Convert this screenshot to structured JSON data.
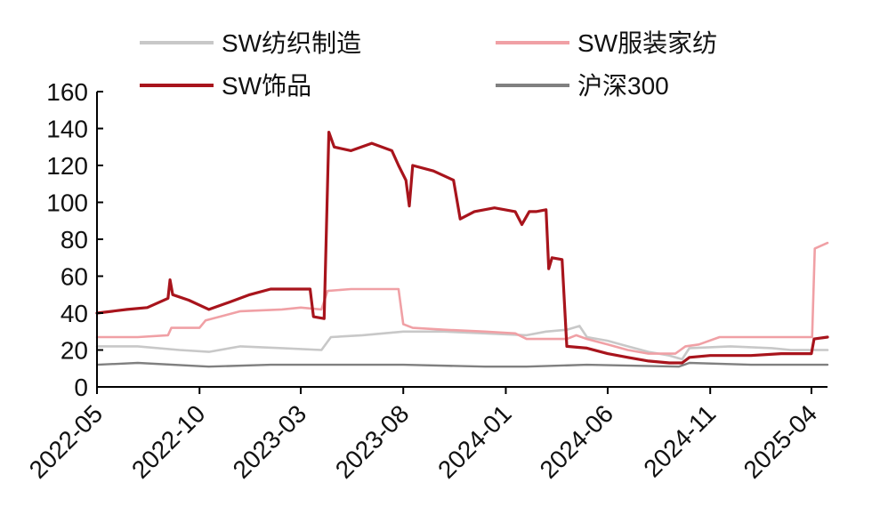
{
  "chart_data": {
    "type": "line",
    "title": "",
    "xlabel": "",
    "ylabel": "",
    "x_ticks": [
      "2022-05",
      "2022-10",
      "2023-03",
      "2023-08",
      "2024-01",
      "2024-06",
      "2024-11",
      "2025-04"
    ],
    "x_range": [
      "2022-05-01",
      "2025-04-25"
    ],
    "y_ticks": [
      0,
      20,
      40,
      60,
      80,
      100,
      120,
      140,
      160
    ],
    "ylim": [
      0,
      160
    ],
    "grid": false,
    "legend_position": "top",
    "series": [
      {
        "name": "SW纺织制造",
        "color": "#c8c8c8",
        "points": [
          [
            "2022-05-01",
            22
          ],
          [
            "2022-07-01",
            22
          ],
          [
            "2022-09-01",
            20
          ],
          [
            "2022-10-15",
            19
          ],
          [
            "2022-12-01",
            22
          ],
          [
            "2023-02-01",
            21
          ],
          [
            "2023-04-01",
            20
          ],
          [
            "2023-04-15",
            27
          ],
          [
            "2023-06-01",
            28
          ],
          [
            "2023-08-01",
            30
          ],
          [
            "2023-10-01",
            30
          ],
          [
            "2023-12-01",
            29
          ],
          [
            "2024-02-01",
            28
          ],
          [
            "2024-03-01",
            30
          ],
          [
            "2024-04-01",
            31
          ],
          [
            "2024-04-20",
            33
          ],
          [
            "2024-05-01",
            27
          ],
          [
            "2024-06-01",
            25
          ],
          [
            "2024-07-01",
            22
          ],
          [
            "2024-08-01",
            19
          ],
          [
            "2024-09-01",
            17
          ],
          [
            "2024-09-20",
            15
          ],
          [
            "2024-10-01",
            21
          ],
          [
            "2024-12-01",
            22
          ],
          [
            "2025-02-01",
            21
          ],
          [
            "2025-03-01",
            20
          ],
          [
            "2025-04-25",
            20
          ]
        ]
      },
      {
        "name": "SW服装家纺",
        "color": "#f0a0a5",
        "points": [
          [
            "2022-05-01",
            27
          ],
          [
            "2022-07-01",
            27
          ],
          [
            "2022-08-15",
            28
          ],
          [
            "2022-08-20",
            32
          ],
          [
            "2022-10-01",
            32
          ],
          [
            "2022-10-10",
            36
          ],
          [
            "2022-12-01",
            41
          ],
          [
            "2023-02-01",
            42
          ],
          [
            "2023-03-01",
            43
          ],
          [
            "2023-04-01",
            42
          ],
          [
            "2023-04-10",
            52
          ],
          [
            "2023-05-15",
            53
          ],
          [
            "2023-06-15",
            53
          ],
          [
            "2023-07-25",
            53
          ],
          [
            "2023-08-01",
            34
          ],
          [
            "2023-08-15",
            32
          ],
          [
            "2023-10-01",
            31
          ],
          [
            "2023-12-01",
            30
          ],
          [
            "2024-01-15",
            29
          ],
          [
            "2024-02-01",
            26
          ],
          [
            "2024-03-15",
            26
          ],
          [
            "2024-04-01",
            26
          ],
          [
            "2024-04-15",
            28
          ],
          [
            "2024-05-01",
            26
          ],
          [
            "2024-06-01",
            23
          ],
          [
            "2024-07-01",
            20
          ],
          [
            "2024-08-01",
            18
          ],
          [
            "2024-09-10",
            18
          ],
          [
            "2024-09-25",
            22
          ],
          [
            "2024-10-15",
            23
          ],
          [
            "2024-11-15",
            27
          ],
          [
            "2025-01-01",
            27
          ],
          [
            "2025-02-15",
            27
          ],
          [
            "2025-03-25",
            27
          ],
          [
            "2025-04-02",
            27
          ],
          [
            "2025-04-06",
            75
          ],
          [
            "2025-04-25",
            78
          ]
        ]
      },
      {
        "name": "SW饰品",
        "color": "#a8141c",
        "points": [
          [
            "2022-05-01",
            40
          ],
          [
            "2022-06-15",
            42
          ],
          [
            "2022-07-15",
            43
          ],
          [
            "2022-08-15",
            48
          ],
          [
            "2022-08-18",
            58
          ],
          [
            "2022-08-22",
            50
          ],
          [
            "2022-09-15",
            47
          ],
          [
            "2022-10-15",
            42
          ],
          [
            "2022-11-15",
            46
          ],
          [
            "2022-12-15",
            50
          ],
          [
            "2023-01-15",
            53
          ],
          [
            "2023-02-15",
            53
          ],
          [
            "2023-03-15",
            53
          ],
          [
            "2023-03-20",
            38
          ],
          [
            "2023-04-05",
            37
          ],
          [
            "2023-04-12",
            138
          ],
          [
            "2023-04-20",
            130
          ],
          [
            "2023-05-15",
            128
          ],
          [
            "2023-06-15",
            132
          ],
          [
            "2023-07-15",
            128
          ],
          [
            "2023-07-25",
            120
          ],
          [
            "2023-08-05",
            112
          ],
          [
            "2023-08-10",
            98
          ],
          [
            "2023-08-15",
            120
          ],
          [
            "2023-09-15",
            117
          ],
          [
            "2023-10-15",
            112
          ],
          [
            "2023-10-25",
            91
          ],
          [
            "2023-11-15",
            95
          ],
          [
            "2023-12-15",
            97
          ],
          [
            "2024-01-15",
            95
          ],
          [
            "2024-01-25",
            88
          ],
          [
            "2024-02-05",
            95
          ],
          [
            "2024-02-15",
            95
          ],
          [
            "2024-03-01",
            96
          ],
          [
            "2024-03-05",
            64
          ],
          [
            "2024-03-10",
            70
          ],
          [
            "2024-03-25",
            69
          ],
          [
            "2024-04-01",
            22
          ],
          [
            "2024-05-01",
            21
          ],
          [
            "2024-06-01",
            18
          ],
          [
            "2024-07-01",
            16
          ],
          [
            "2024-08-01",
            14
          ],
          [
            "2024-09-01",
            13
          ],
          [
            "2024-09-20",
            13
          ],
          [
            "2024-10-01",
            16
          ],
          [
            "2024-11-01",
            17
          ],
          [
            "2025-01-01",
            17
          ],
          [
            "2025-02-15",
            18
          ],
          [
            "2025-04-01",
            18
          ],
          [
            "2025-04-05",
            26
          ],
          [
            "2025-04-25",
            27
          ]
        ]
      },
      {
        "name": "沪深300",
        "color": "#808080",
        "points": [
          [
            "2022-05-01",
            12
          ],
          [
            "2022-07-01",
            13
          ],
          [
            "2022-10-15",
            11
          ],
          [
            "2023-01-15",
            12
          ],
          [
            "2023-05-01",
            12
          ],
          [
            "2023-08-01",
            12
          ],
          [
            "2023-12-01",
            11
          ],
          [
            "2024-02-01",
            11
          ],
          [
            "2024-05-01",
            12
          ],
          [
            "2024-09-15",
            11
          ],
          [
            "2024-10-01",
            13
          ],
          [
            "2025-01-01",
            12
          ],
          [
            "2025-04-25",
            12
          ]
        ]
      }
    ]
  }
}
